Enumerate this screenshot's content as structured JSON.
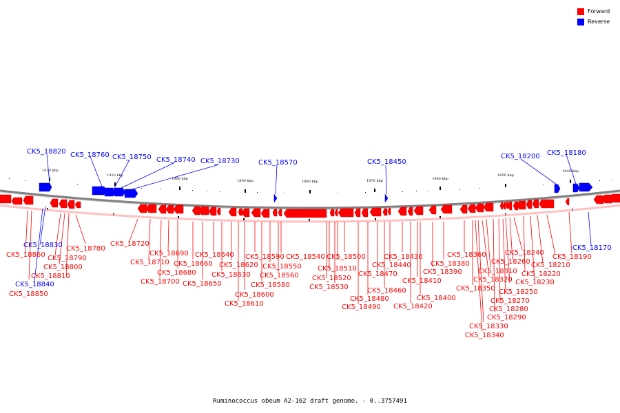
{
  "legend": {
    "forward_label": "Forward",
    "reverse_label": "Reverse",
    "forward_color": "#ff0000",
    "reverse_color": "#0000ff"
  },
  "caption": "Ruminococcus obeum A2-162 draft genome. - 0..3757491",
  "scale_ticks": [
    "1920 kbp",
    "1910 kbp",
    "1900 kbp",
    "1890 kbp",
    "1880 kbp",
    "1870 kbp",
    "1860 kbp",
    "1850 kbp",
    "1840 kbp"
  ],
  "genes_forward": [
    "CK5_18720",
    "CK5_18690",
    "CK5_18710",
    "CK5_18660",
    "CK5_18680",
    "CK5_18700",
    "CK5_18650",
    "CK5_18640",
    "CK5_18630",
    "CK5_18620",
    "CK5_18610",
    "CK5_18600",
    "CK5_18590",
    "CK5_18580",
    "CK5_18550",
    "CK5_18560",
    "CK5_18540",
    "CK5_18530",
    "CK5_18520",
    "CK5_18510",
    "CK5_18500",
    "CK5_18490",
    "CK5_18480",
    "CK5_18470",
    "CK5_18460",
    "CK5_18440",
    "CK5_18430",
    "CK5_18420",
    "CK5_18410",
    "CK5_18400",
    "CK5_18390",
    "CK5_18380",
    "CK5_18360",
    "CK5_18350",
    "CK5_18340",
    "CK5_18330",
    "CK5_18320",
    "CK5_18310",
    "CK5_18290",
    "CK5_18280",
    "CK5_18270",
    "CK5_18260",
    "CK5_18250",
    "CK5_18240",
    "CK5_18230",
    "CK5_18220",
    "CK5_18210",
    "CK5_18190",
    "CK5_18780",
    "CK5_18790",
    "CK5_18800",
    "CK5_18810",
    "CK5_18860",
    "CK5_18850"
  ],
  "genes_reverse": [
    "CK5_18820",
    "CK5_18760",
    "CK5_18750",
    "CK5_18740",
    "CK5_18730",
    "CK5_18570",
    "CK5_18450",
    "CK5_18200",
    "CK5_18180",
    "CK5_18170",
    "CK5_18830",
    "CK5_18840"
  ]
}
